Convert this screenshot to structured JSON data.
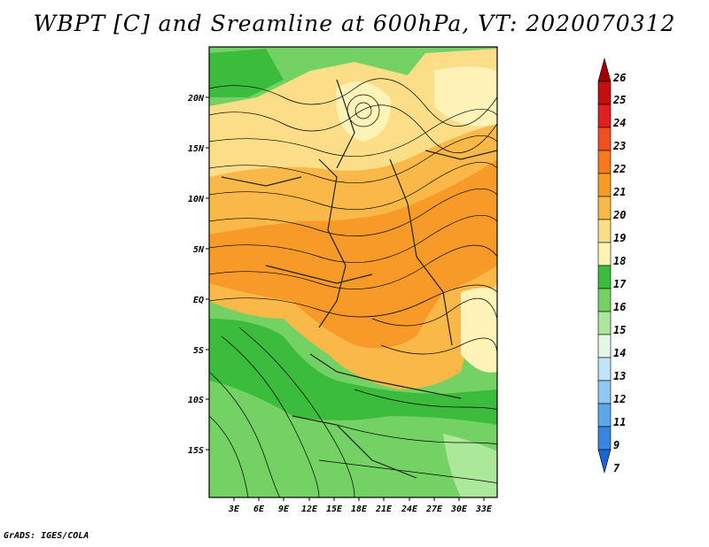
{
  "title": "WBPT [C] and Sreamline at 600hPa, VT: 2020070312",
  "footer": "GrADS: IGES/COLA",
  "map": {
    "lon_labels": [
      "3E",
      "6E",
      "9E",
      "12E",
      "15E",
      "18E",
      "21E",
      "24E",
      "27E",
      "30E",
      "33E"
    ],
    "lat_labels": [
      "20N",
      "15N",
      "10N",
      "5N",
      "EQ",
      "5S",
      "10S",
      "15S"
    ],
    "lon_range": [
      0,
      34.5
    ],
    "lat_range": [
      -20,
      24.5
    ]
  },
  "colorbar": {
    "labels": [
      "26",
      "25",
      "24",
      "23",
      "22",
      "21",
      "20",
      "19",
      "18",
      "17",
      "16",
      "15",
      "14",
      "13",
      "12",
      "11",
      "9",
      "7"
    ],
    "colors": [
      "#a00000",
      "#c01010",
      "#e02020",
      "#f05020",
      "#f57a1e",
      "#f89a28",
      "#fab848",
      "#fcdd88",
      "#fff3b8",
      "#3cbc3c",
      "#74d164",
      "#ace89a",
      "#e4f8ea",
      "#c2e4f8",
      "#8fc8f2",
      "#5ca6ea",
      "#3886e0",
      "#1c64d6"
    ]
  },
  "colors": {
    "warm_core": "#f89a28",
    "warm_mid": "#fab848",
    "pale_yellow": "#fcdd88",
    "green_dark": "#3cbc3c",
    "green_mid": "#74d164",
    "green_light": "#ace89a"
  }
}
